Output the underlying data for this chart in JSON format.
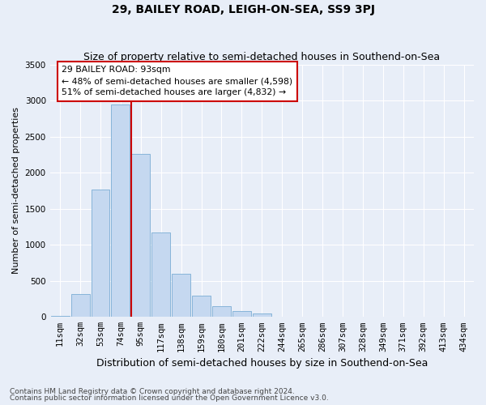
{
  "title": "29, BAILEY ROAD, LEIGH-ON-SEA, SS9 3PJ",
  "subtitle": "Size of property relative to semi-detached houses in Southend-on-Sea",
  "xlabel": "Distribution of semi-detached houses by size in Southend-on-Sea",
  "ylabel": "Number of semi-detached properties",
  "footnote1": "Contains HM Land Registry data © Crown copyright and database right 2024.",
  "footnote2": "Contains public sector information licensed under the Open Government Licence v3.0.",
  "categories": [
    "11sqm",
    "32sqm",
    "53sqm",
    "74sqm",
    "95sqm",
    "117sqm",
    "138sqm",
    "159sqm",
    "180sqm",
    "201sqm",
    "222sqm",
    "244sqm",
    "265sqm",
    "286sqm",
    "307sqm",
    "328sqm",
    "349sqm",
    "371sqm",
    "392sqm",
    "413sqm",
    "434sqm"
  ],
  "values": [
    10,
    320,
    1770,
    2950,
    2260,
    1175,
    600,
    290,
    145,
    80,
    50,
    5,
    0,
    0,
    0,
    0,
    0,
    0,
    0,
    0,
    0
  ],
  "bar_color": "#c5d8f0",
  "bar_edge_color": "#7aadd4",
  "highlight_index": 4,
  "highlight_line_color": "#cc0000",
  "annotation_text": "29 BAILEY ROAD: 93sqm\n← 48% of semi-detached houses are smaller (4,598)\n51% of semi-detached houses are larger (4,832) →",
  "annotation_box_color": "#ffffff",
  "annotation_box_edge": "#cc0000",
  "ylim": [
    0,
    3500
  ],
  "yticks": [
    0,
    500,
    1000,
    1500,
    2000,
    2500,
    3000,
    3500
  ],
  "bg_color": "#e8eef8",
  "plot_bg_color": "#e8eef8",
  "title_fontsize": 10,
  "subtitle_fontsize": 9,
  "ylabel_fontsize": 8,
  "xlabel_fontsize": 9,
  "tick_fontsize": 7.5,
  "footnote_fontsize": 6.5
}
